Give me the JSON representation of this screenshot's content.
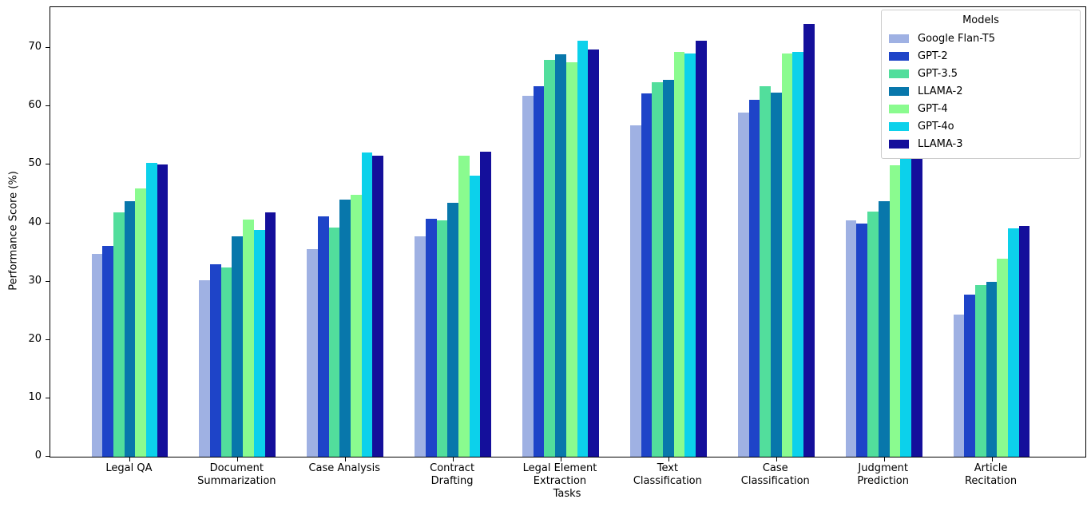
{
  "figure": {
    "background": "#ffffff"
  },
  "chart_data": {
    "type": "bar",
    "title": "",
    "xlabel": "Tasks",
    "ylabel": "Performance Score (%)",
    "ylim": [
      0,
      77
    ],
    "yticks": [
      0,
      10,
      20,
      30,
      40,
      50,
      60,
      70
    ],
    "grid": false,
    "legend": {
      "title": "Models",
      "position": "upper right"
    },
    "categories": [
      "Legal QA",
      "Document\nSummarization",
      "Case Analysis",
      "Contract\nDrafting",
      "Legal Element\nExtraction",
      "Text\nClassification",
      "Case\nClassification",
      "Judgment\nPrediction",
      "Article\nRecitation"
    ],
    "series": [
      {
        "name": "Google Flan-T5",
        "color": "#9FB1E3",
        "values": [
          34.7,
          30.2,
          35.6,
          37.7,
          61.8,
          56.7,
          58.9,
          40.5,
          24.4
        ]
      },
      {
        "name": "GPT-2",
        "color": "#1E44C8",
        "values": [
          36.1,
          33.0,
          41.2,
          40.7,
          63.4,
          62.2,
          61.2,
          40.0,
          27.7
        ]
      },
      {
        "name": "GPT-3.5",
        "color": "#52DE9C",
        "values": [
          41.8,
          32.4,
          39.3,
          40.5,
          68.0,
          64.1,
          63.5,
          42.0,
          29.4
        ]
      },
      {
        "name": "LLAMA-2",
        "color": "#0877AB",
        "values": [
          43.7,
          37.7,
          44.1,
          43.5,
          69.0,
          64.5,
          62.3,
          43.7,
          30.0
        ]
      },
      {
        "name": "GPT-4",
        "color": "#8AFB8F",
        "values": [
          45.9,
          40.6,
          44.8,
          51.5,
          67.5,
          69.3,
          69.1,
          49.9,
          33.9
        ]
      },
      {
        "name": "GPT-4o",
        "color": "#0CD1EB",
        "values": [
          50.4,
          38.8,
          52.1,
          48.2,
          71.2,
          69.1,
          69.3,
          51.5,
          39.1
        ]
      },
      {
        "name": "LLAMA-3",
        "color": "#140F9B",
        "values": [
          50.1,
          41.8,
          51.5,
          52.2,
          69.8,
          71.2,
          74.1,
          54.5,
          39.5
        ]
      }
    ]
  }
}
